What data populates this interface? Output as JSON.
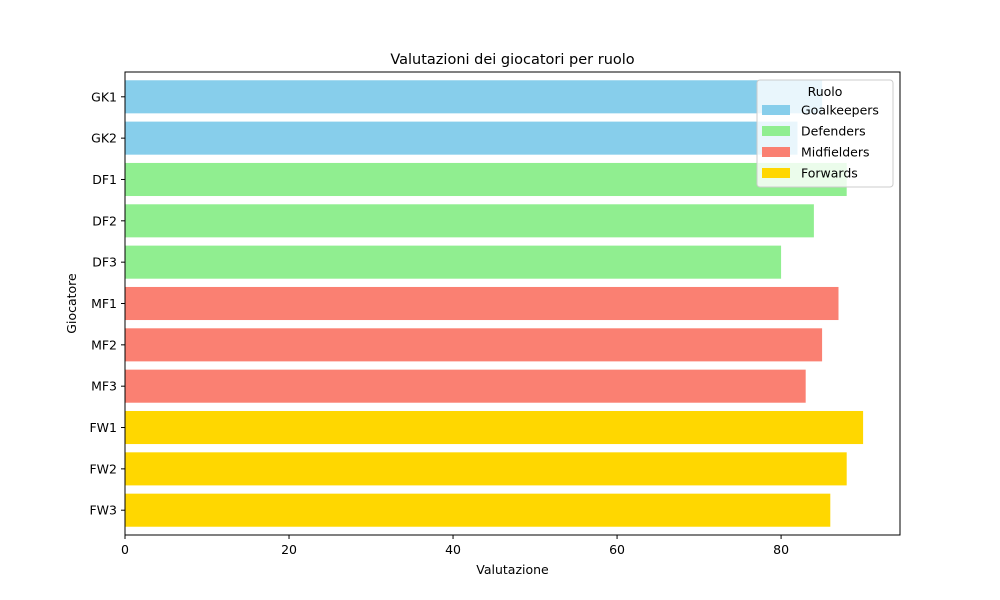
{
  "chart_data": {
    "type": "bar",
    "orientation": "horizontal",
    "title": "Valutazioni dei giocatori per ruolo",
    "xlabel": "Valutazione",
    "ylabel": "Giocatore",
    "xlim": [
      0,
      94.5
    ],
    "xticks": [
      0,
      20,
      40,
      60,
      80
    ],
    "grid": false,
    "categories": [
      "GK1",
      "GK2",
      "DF1",
      "DF2",
      "DF3",
      "MF1",
      "MF2",
      "MF3",
      "FW1",
      "FW2",
      "FW3"
    ],
    "values": [
      85,
      82,
      88,
      84,
      80,
      87,
      85,
      83,
      90,
      88,
      86
    ],
    "roles": [
      "Goalkeepers",
      "Goalkeepers",
      "Defenders",
      "Defenders",
      "Defenders",
      "Midfielders",
      "Midfielders",
      "Midfielders",
      "Forwards",
      "Forwards",
      "Forwards"
    ],
    "legend": {
      "title": "Ruolo",
      "placement": "top-right",
      "entries": [
        {
          "name": "Goalkeepers",
          "color": "#87CEEB"
        },
        {
          "name": "Defenders",
          "color": "#90EE90"
        },
        {
          "name": "Midfielders",
          "color": "#FA8072"
        },
        {
          "name": "Forwards",
          "color": "#FFD700"
        }
      ]
    }
  }
}
